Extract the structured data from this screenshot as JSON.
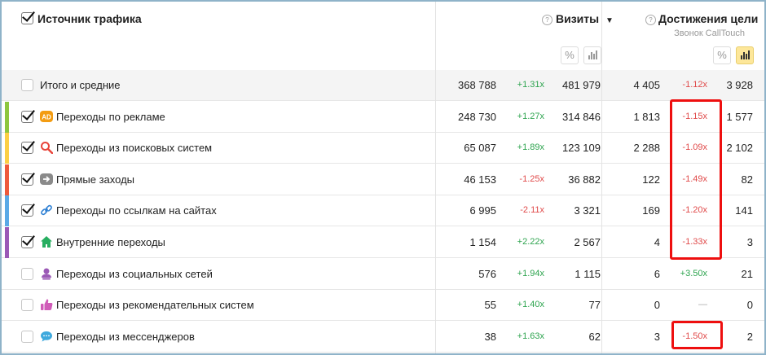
{
  "header": {
    "source_label": "Источник трафика",
    "visits_label": "Визиты",
    "visits_sort": "▼",
    "goals_label": "Достижения цели",
    "goal_name": "Звонок CallTouch",
    "percent_glyph": "%"
  },
  "total": {
    "label": "Итого и средние",
    "c1": "368 788",
    "d1": "+1.31x",
    "c2": "481 979",
    "c3": "4 405",
    "d2": "-1.12x",
    "c4": "3 928"
  },
  "rows": [
    {
      "label": "Переходы по рекламе",
      "c1": "248 730",
      "d1": "+1.27x",
      "c2": "314 846",
      "c3": "1 813",
      "d2": "-1.15x",
      "c4": "1 577",
      "color": "#8dc63f",
      "checked": true,
      "icon": "ad-icon"
    },
    {
      "label": "Переходы из поисковых систем",
      "c1": "65 087",
      "d1": "+1.89x",
      "c2": "123 109",
      "c3": "2 288",
      "d2": "-1.09x",
      "c4": "2 102",
      "color": "#fbcf45",
      "checked": true,
      "icon": "search-icon"
    },
    {
      "label": "Прямые заходы",
      "c1": "46 153",
      "d1": "-1.25x",
      "c2": "36 882",
      "c3": "122",
      "d2": "-1.49x",
      "c4": "82",
      "color": "#ee5a3c",
      "checked": true,
      "icon": "direct-arrow-icon"
    },
    {
      "label": "Переходы по ссылкам на сайтах",
      "c1": "6 995",
      "d1": "-2.11x",
      "c2": "3 321",
      "c3": "169",
      "d2": "-1.20x",
      "c4": "141",
      "color": "#5aa9e6",
      "checked": true,
      "icon": "link-icon"
    },
    {
      "label": "Внутренние переходы",
      "c1": "1 154",
      "d1": "+2.22x",
      "c2": "2 567",
      "c3": "4",
      "d2": "-1.33x",
      "c4": "3",
      "color": "#9b59b6",
      "checked": true,
      "icon": "home-icon"
    },
    {
      "label": "Переходы из социальных сетей",
      "c1": "576",
      "d1": "+1.94x",
      "c2": "1 115",
      "c3": "6",
      "d2": "+3.50x",
      "c4": "21",
      "color": "",
      "checked": false,
      "icon": "social-person-icon"
    },
    {
      "label": "Переходы из рекомендательных систем",
      "c1": "55",
      "d1": "+1.40x",
      "c2": "77",
      "c3": "0",
      "d2": "—",
      "c4": "0",
      "color": "",
      "checked": false,
      "icon": "thumbs-up-icon"
    },
    {
      "label": "Переходы из мессенджеров",
      "c1": "38",
      "d1": "+1.63x",
      "c2": "62",
      "c3": "3",
      "d2": "-1.50x",
      "c4": "2",
      "color": "",
      "checked": false,
      "icon": "chat-bubble-icon"
    }
  ],
  "highlight_color": "#ee0f0f"
}
